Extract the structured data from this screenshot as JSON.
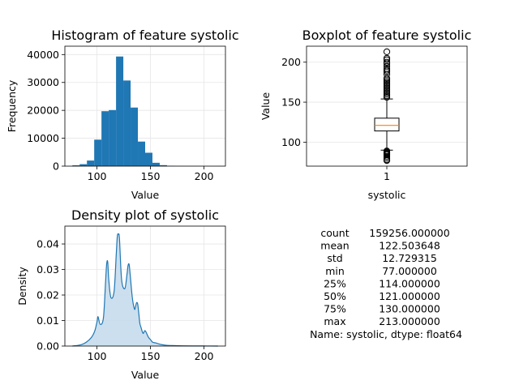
{
  "chart_data": [
    {
      "type": "bar",
      "title": "Histogram of feature systolic",
      "xlabel": "Value",
      "ylabel": "Frequency",
      "xlim": [
        70,
        220
      ],
      "ylim": [
        0,
        43000
      ],
      "xticks": [
        100,
        150,
        200
      ],
      "yticks": [
        0,
        10000,
        20000,
        30000,
        40000
      ],
      "bin_edges": [
        77,
        83.8,
        90.6,
        97.4,
        104.2,
        111,
        117.8,
        124.6,
        131.4,
        138.2,
        145,
        151.8,
        158.6,
        165.4,
        172.2,
        179,
        185.8,
        192.6,
        199.4,
        206.2,
        213
      ],
      "values": [
        300,
        700,
        2000,
        9500,
        19700,
        20100,
        39300,
        30700,
        21000,
        8800,
        4800,
        1200,
        350,
        100,
        40,
        20,
        10,
        5,
        3,
        2
      ],
      "color": "#1f77b4",
      "grid": true
    },
    {
      "type": "boxplot",
      "title": "Boxplot of feature systolic",
      "xlabel": "systolic",
      "ylabel": "Value",
      "categories": [
        "1"
      ],
      "ylim": [
        70,
        220
      ],
      "yticks": [
        100,
        150,
        200
      ],
      "whisker_low": 90,
      "q1": 114,
      "median": 121,
      "q3": 130,
      "whisker_high": 154,
      "outliers_low": [
        77,
        78,
        80,
        82,
        84,
        85,
        86,
        87,
        88,
        89
      ],
      "outliers_high": [
        156,
        158,
        160,
        162,
        164,
        166,
        168,
        170,
        172,
        174,
        176,
        178,
        180,
        185,
        188,
        190,
        192,
        195,
        198,
        200,
        203,
        205,
        213
      ],
      "median_color": "#ff7f0e",
      "grid": true
    },
    {
      "type": "area",
      "title": "Density plot of systolic",
      "xlabel": "Value",
      "ylabel": "Density",
      "xlim": [
        70,
        220
      ],
      "ylim": [
        0,
        0.047
      ],
      "xticks": [
        100,
        150,
        200
      ],
      "yticks": [
        0.0,
        0.01,
        0.02,
        0.03,
        0.04
      ],
      "x": [
        77,
        85,
        90,
        95,
        98,
        100,
        101,
        103,
        106,
        108,
        109,
        110,
        111,
        113,
        116,
        118,
        119,
        120,
        121,
        123,
        126,
        128,
        129,
        130,
        131,
        133,
        135,
        136,
        137,
        138,
        139,
        140,
        141,
        143,
        145,
        148,
        150,
        152,
        155,
        160,
        165,
        170,
        180,
        190,
        200,
        213
      ],
      "y": [
        0.0,
        0.0005,
        0.0015,
        0.0035,
        0.006,
        0.0095,
        0.0115,
        0.0085,
        0.011,
        0.025,
        0.032,
        0.033,
        0.026,
        0.019,
        0.0215,
        0.036,
        0.043,
        0.0438,
        0.042,
        0.026,
        0.0225,
        0.028,
        0.0315,
        0.032,
        0.028,
        0.019,
        0.0145,
        0.0155,
        0.017,
        0.0165,
        0.013,
        0.009,
        0.0075,
        0.005,
        0.006,
        0.0035,
        0.0025,
        0.0015,
        0.0012,
        0.0006,
        0.0003,
        0.0002,
        0.0001,
        5e-05,
        3e-05,
        0.0
      ],
      "color": "#1f77b4",
      "fill_color": "#c6dbec",
      "grid": true
    },
    {
      "type": "table",
      "rows": [
        {
          "label": "count",
          "value": "159256.000000"
        },
        {
          "label": "mean",
          "value": "122.503648"
        },
        {
          "label": "std",
          "value": "12.729315"
        },
        {
          "label": "min",
          "value": "77.000000"
        },
        {
          "label": "25%",
          "value": "114.000000"
        },
        {
          "label": "50%",
          "value": "121.000000"
        },
        {
          "label": "75%",
          "value": "130.000000"
        },
        {
          "label": "max",
          "value": "213.000000"
        }
      ],
      "footer": "Name: systolic, dtype: float64"
    }
  ]
}
